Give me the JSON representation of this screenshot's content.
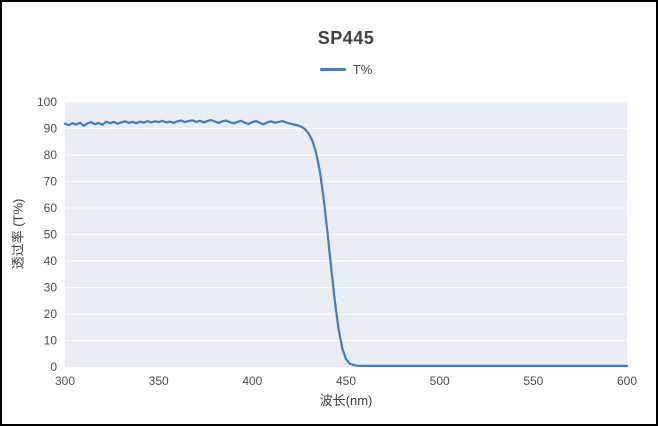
{
  "chart": {
    "title": "SP445",
    "legend_label": "T%",
    "xlabel": "波长(nm)",
    "ylabel": "透过率 (T%)",
    "line_color": "#4a7ab5",
    "plot_bg": "#e9eef6",
    "grid_color": "#ffffff",
    "tick_color": "#4d4d4d",
    "x_ticks": [
      300,
      350,
      400,
      450,
      500,
      550,
      600
    ],
    "y_ticks": [
      0,
      10,
      20,
      30,
      40,
      50,
      60,
      70,
      80,
      90,
      100
    ]
  },
  "chart_data": {
    "type": "line",
    "title": "SP445",
    "xlabel": "波长(nm)",
    "ylabel": "透过率 (T%)",
    "xlim": [
      300,
      600
    ],
    "ylim": [
      0,
      100
    ],
    "legend": [
      "T%"
    ],
    "legend_position": "top",
    "grid": "horizontal-only",
    "series": [
      {
        "name": "T%",
        "x": [
          300,
          302,
          304,
          306,
          308,
          310,
          312,
          314,
          316,
          318,
          320,
          322,
          324,
          326,
          328,
          330,
          332,
          334,
          336,
          338,
          340,
          342,
          344,
          346,
          348,
          350,
          352,
          354,
          356,
          358,
          360,
          362,
          364,
          366,
          368,
          370,
          372,
          374,
          376,
          378,
          380,
          382,
          384,
          386,
          388,
          390,
          392,
          394,
          396,
          398,
          400,
          402,
          404,
          406,
          408,
          410,
          412,
          414,
          416,
          418,
          420,
          422,
          424,
          426,
          428,
          430,
          432,
          434,
          436,
          438,
          440,
          442,
          444,
          446,
          448,
          450,
          452,
          454,
          456,
          458,
          460,
          470,
          480,
          490,
          500,
          510,
          520,
          530,
          540,
          550,
          560,
          570,
          580,
          590,
          600
        ],
        "y": [
          91.8,
          91.3,
          92.0,
          91.5,
          92.2,
          91.0,
          91.9,
          92.4,
          91.6,
          92.1,
          91.4,
          92.6,
          92.0,
          92.5,
          91.8,
          92.3,
          92.7,
          92.1,
          92.5,
          92.0,
          92.6,
          92.2,
          92.8,
          92.3,
          92.7,
          92.4,
          92.9,
          92.3,
          92.6,
          92.1,
          92.7,
          93.0,
          92.4,
          92.8,
          93.1,
          92.5,
          92.9,
          92.3,
          92.8,
          93.2,
          92.6,
          92.1,
          92.7,
          93.0,
          92.4,
          91.9,
          92.5,
          92.9,
          92.2,
          91.7,
          92.4,
          92.8,
          92.1,
          91.6,
          92.3,
          92.7,
          92.2,
          92.5,
          92.8,
          92.3,
          91.9,
          91.5,
          91.2,
          90.7,
          89.8,
          88.2,
          85.5,
          81.0,
          74.0,
          64.0,
          51.5,
          38.0,
          25.0,
          14.5,
          7.0,
          3.0,
          1.3,
          0.7,
          0.5,
          0.4,
          0.4,
          0.4,
          0.4,
          0.4,
          0.4,
          0.4,
          0.4,
          0.4,
          0.4,
          0.4,
          0.4,
          0.4,
          0.4,
          0.4,
          0.4
        ]
      }
    ]
  }
}
